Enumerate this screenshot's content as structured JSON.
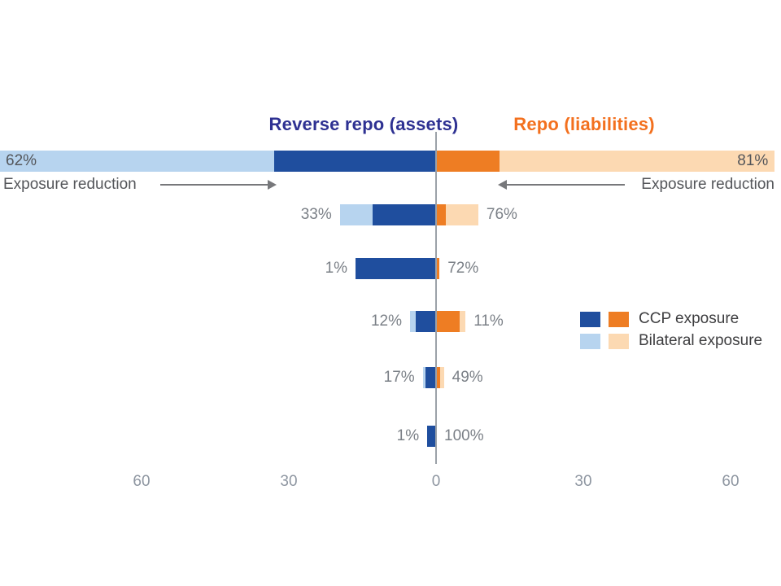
{
  "titles": {
    "left": "Reverse repo (assets)",
    "right": "Repo (liabilities)"
  },
  "annotations": {
    "left_arrow_label": "Exposure reduction",
    "right_arrow_label": "Exposure reduction"
  },
  "legend": {
    "items": [
      {
        "label": "CCP exposure"
      },
      {
        "label": "Bilateral exposure"
      }
    ]
  },
  "colors": {
    "ccp_assets": "#1F4E9E",
    "ccp_liabilities": "#EE7D23",
    "bilateral_assets": "#B7D4EF",
    "bilateral_liabilities": "#FCD9B2",
    "title_assets": "#2E3192",
    "title_liabilities": "#F3701E",
    "center_line": "#9BA1A8"
  },
  "chart_data": {
    "type": "bar",
    "orientation": "diverging-horizontal",
    "note": "Left of zero = Reverse repo (assets), right of zero = Repo (liabilities). Segment values estimated from axis scale; percent labels show exposure reduction share.",
    "axis": {
      "range": [
        -60,
        60
      ],
      "ticks": [
        {
          "value": -60,
          "label": "60"
        },
        {
          "value": -30,
          "label": "30"
        },
        {
          "value": 0,
          "label": "0"
        },
        {
          "value": 30,
          "label": "30"
        },
        {
          "value": 60,
          "label": "60"
        }
      ]
    },
    "series_names": [
      "CCP exposure",
      "Bilateral exposure"
    ],
    "rows": [
      {
        "left_label": "62%",
        "right_label": "81%",
        "labels_inside": true,
        "left": {
          "ccp": 33.0,
          "bilateral": 56.0
        },
        "right": {
          "ccp": 13.0,
          "bilateral": 56.0
        }
      },
      {
        "left_label": "33%",
        "right_label": "76%",
        "labels_inside": false,
        "left": {
          "ccp": 13.0,
          "bilateral": 6.6
        },
        "right": {
          "ccp": 2.0,
          "bilateral": 6.6
        }
      },
      {
        "left_label": "1%",
        "right_label": "72%",
        "labels_inside": false,
        "left": {
          "ccp": 16.4,
          "bilateral": 0
        },
        "right": {
          "ccp": 0.7,
          "bilateral": 0
        }
      },
      {
        "left_label": "12%",
        "right_label": "11%",
        "labels_inside": false,
        "left": {
          "ccp": 4.1,
          "bilateral": 1.2
        },
        "right": {
          "ccp": 4.8,
          "bilateral": 1.2
        }
      },
      {
        "left_label": "17%",
        "right_label": "49%",
        "labels_inside": false,
        "left": {
          "ccp": 2.2,
          "bilateral": 0.5
        },
        "right": {
          "ccp": 0.8,
          "bilateral": 0.8
        }
      },
      {
        "left_label": "1%",
        "right_label": "100%",
        "labels_inside": false,
        "left": {
          "ccp": 1.8,
          "bilateral": 0
        },
        "right": {
          "ccp": 0,
          "bilateral": 0
        }
      }
    ]
  }
}
